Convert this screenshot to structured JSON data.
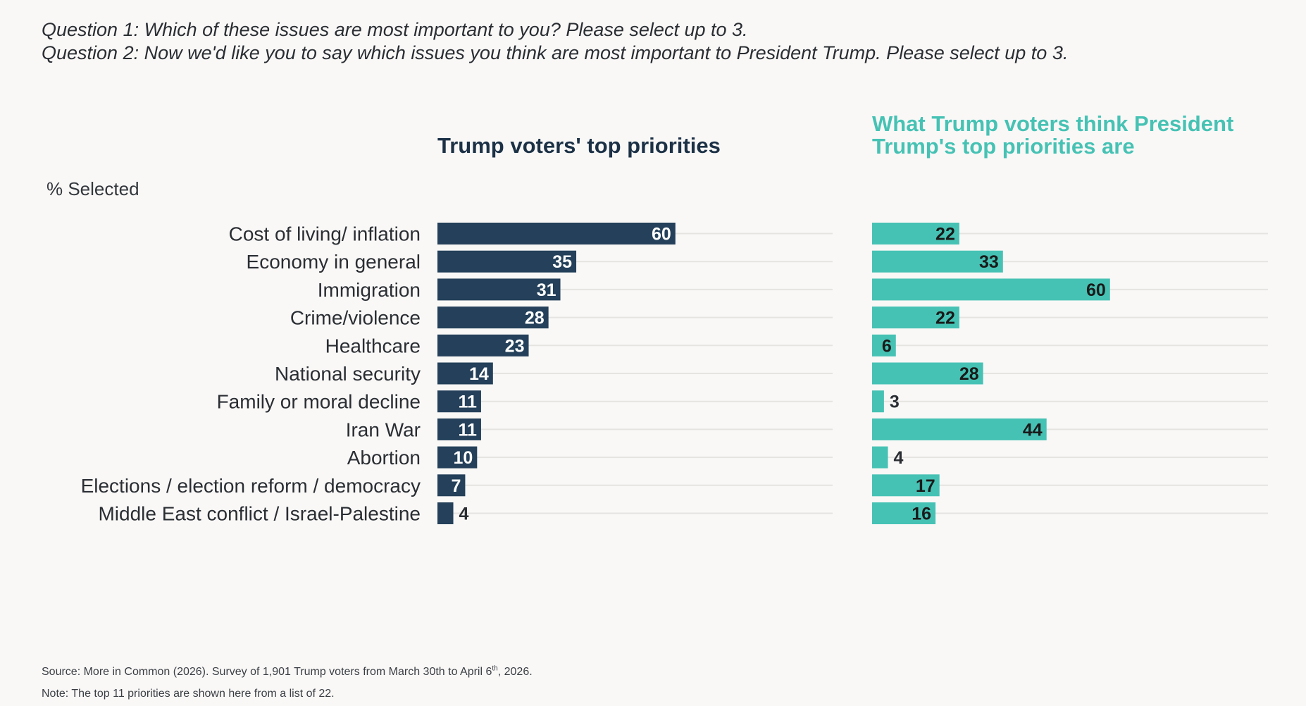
{
  "questions": {
    "q1": "Question 1: Which of these issues are most important to you? Please select up to 3.",
    "q2": "Question 2: Now we'd like you to say which issues you think are most important to President Trump. Please select up to 3."
  },
  "footer": {
    "source_prefix": "Source: More in Common (2026). Survey of 1,901 Trump voters from March 30th to April 6",
    "source_sup": "th",
    "source_suffix": ", 2026.",
    "note": "Note: The top 11 priorities are shown here from a list of 22."
  },
  "chart_data": {
    "type": "bar",
    "orientation": "horizontal",
    "ylabel": "% Selected",
    "categories": [
      "Cost of living/ inflation",
      "Economy in general",
      "Immigration",
      "Crime/violence",
      "Healthcare",
      "National security",
      "Family or moral decline",
      "Iran War",
      "Abortion",
      "Elections / election reform / democracy",
      "Middle East conflict / Israel-Palestine"
    ],
    "series": [
      {
        "name": "Trump voters' top priorities",
        "color": "#24405a",
        "label_color": "#ffffff",
        "values": [
          60,
          35,
          31,
          28,
          23,
          14,
          11,
          11,
          10,
          7,
          4
        ]
      },
      {
        "name_lines": [
          "What Trump voters think President",
          "Trump's top priorities are"
        ],
        "color": "#46c2b4",
        "label_color": "#1a1a1a",
        "values": [
          22,
          33,
          60,
          22,
          6,
          28,
          3,
          44,
          4,
          17,
          16
        ]
      }
    ],
    "xlim": [
      0,
      100
    ],
    "grid": true,
    "data_labels": true
  }
}
